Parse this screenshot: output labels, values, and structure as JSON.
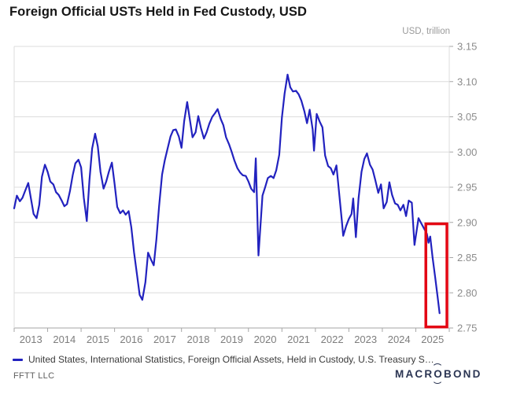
{
  "header": {
    "title": "Foreign Official USTs Held in Fed Custody, USD",
    "unit_label": "USD, trillion"
  },
  "legend": {
    "marker": "line-dash",
    "label": "United States, International Statistics, Foreign Official Assets, Held in Custody, U.S. Treasury S…"
  },
  "footer": {
    "source": "FFTT LLC",
    "logo_pre": "MACR",
    "logo_o": "O",
    "logo_post": "BOND"
  },
  "colors": {
    "line": "#2222bf",
    "grid": "#dcdcdc",
    "axis": "#a6a6a6",
    "tick_label": "#8c8c8c",
    "x_label": "#7d7d7d",
    "highlight": "#e30613",
    "title": "#161616"
  },
  "chart_data": {
    "type": "line",
    "title": "Foreign Official USTs Held in Fed Custody, USD",
    "ylabel": "USD, trillion",
    "xlabel": "",
    "ylim": [
      2.75,
      3.15
    ],
    "xlim": [
      2013.0,
      2026.0
    ],
    "grid": "horizontal",
    "legend_position": "bottom-left",
    "y_ticks": [
      2.75,
      2.8,
      2.85,
      2.9,
      2.95,
      3.0,
      3.05,
      3.1,
      3.15
    ],
    "y_tick_labels": [
      "2.75",
      "2.80",
      "2.85",
      "2.90",
      "2.95",
      "3.00",
      "3.05",
      "3.10",
      "3.15"
    ],
    "x_tick_boundaries": [
      2013,
      2014,
      2015,
      2016,
      2017,
      2018,
      2019,
      2020,
      2021,
      2022,
      2023,
      2024,
      2025,
      2026
    ],
    "x_labels": [
      "2013",
      "2014",
      "2015",
      "2016",
      "2017",
      "2018",
      "2019",
      "2020",
      "2021",
      "2022",
      "2023",
      "2024",
      "2025"
    ],
    "highlight_box": {
      "x1": 2025.3,
      "x2": 2025.93,
      "y_top": 2.898,
      "y_bottom": 2.7515
    },
    "series": [
      {
        "name": "United States, International Statistics, Foreign Official Assets, Held in Custody, U.S. Treasury S…",
        "points": [
          [
            2013.0,
            2.92
          ],
          [
            2013.08,
            2.938
          ],
          [
            2013.17,
            2.93
          ],
          [
            2013.25,
            2.935
          ],
          [
            2013.33,
            2.945
          ],
          [
            2013.42,
            2.956
          ],
          [
            2013.5,
            2.934
          ],
          [
            2013.58,
            2.912
          ],
          [
            2013.67,
            2.906
          ],
          [
            2013.75,
            2.925
          ],
          [
            2013.83,
            2.965
          ],
          [
            2013.92,
            2.982
          ],
          [
            2014.0,
            2.972
          ],
          [
            2014.08,
            2.958
          ],
          [
            2014.17,
            2.954
          ],
          [
            2014.25,
            2.943
          ],
          [
            2014.33,
            2.939
          ],
          [
            2014.42,
            2.931
          ],
          [
            2014.5,
            2.923
          ],
          [
            2014.58,
            2.926
          ],
          [
            2014.67,
            2.945
          ],
          [
            2014.75,
            2.967
          ],
          [
            2014.83,
            2.984
          ],
          [
            2014.92,
            2.989
          ],
          [
            2015.0,
            2.978
          ],
          [
            2015.08,
            2.935
          ],
          [
            2015.17,
            2.902
          ],
          [
            2015.25,
            2.96
          ],
          [
            2015.33,
            3.005
          ],
          [
            2015.42,
            3.026
          ],
          [
            2015.5,
            3.008
          ],
          [
            2015.58,
            2.972
          ],
          [
            2015.67,
            2.948
          ],
          [
            2015.75,
            2.958
          ],
          [
            2015.83,
            2.972
          ],
          [
            2015.92,
            2.985
          ],
          [
            2016.0,
            2.955
          ],
          [
            2016.08,
            2.922
          ],
          [
            2016.17,
            2.913
          ],
          [
            2016.25,
            2.917
          ],
          [
            2016.33,
            2.911
          ],
          [
            2016.42,
            2.916
          ],
          [
            2016.5,
            2.893
          ],
          [
            2016.58,
            2.858
          ],
          [
            2016.67,
            2.826
          ],
          [
            2016.75,
            2.797
          ],
          [
            2016.83,
            2.79
          ],
          [
            2016.92,
            2.815
          ],
          [
            2017.0,
            2.857
          ],
          [
            2017.08,
            2.848
          ],
          [
            2017.17,
            2.839
          ],
          [
            2017.25,
            2.876
          ],
          [
            2017.33,
            2.923
          ],
          [
            2017.42,
            2.968
          ],
          [
            2017.5,
            2.988
          ],
          [
            2017.58,
            3.004
          ],
          [
            2017.67,
            3.022
          ],
          [
            2017.75,
            3.031
          ],
          [
            2017.83,
            3.032
          ],
          [
            2017.92,
            3.022
          ],
          [
            2018.0,
            3.006
          ],
          [
            2018.08,
            3.044
          ],
          [
            2018.17,
            3.071
          ],
          [
            2018.25,
            3.046
          ],
          [
            2018.33,
            3.021
          ],
          [
            2018.42,
            3.028
          ],
          [
            2018.5,
            3.051
          ],
          [
            2018.58,
            3.034
          ],
          [
            2018.67,
            3.019
          ],
          [
            2018.75,
            3.028
          ],
          [
            2018.83,
            3.04
          ],
          [
            2018.92,
            3.05
          ],
          [
            2019.0,
            3.055
          ],
          [
            2019.08,
            3.061
          ],
          [
            2019.17,
            3.047
          ],
          [
            2019.25,
            3.038
          ],
          [
            2019.33,
            3.021
          ],
          [
            2019.42,
            3.011
          ],
          [
            2019.5,
            3.0
          ],
          [
            2019.58,
            2.988
          ],
          [
            2019.67,
            2.977
          ],
          [
            2019.75,
            2.971
          ],
          [
            2019.83,
            2.967
          ],
          [
            2019.92,
            2.966
          ],
          [
            2020.0,
            2.958
          ],
          [
            2020.08,
            2.948
          ],
          [
            2020.17,
            2.943
          ],
          [
            2020.22,
            2.991
          ],
          [
            2020.3,
            2.853
          ],
          [
            2020.42,
            2.938
          ],
          [
            2020.5,
            2.95
          ],
          [
            2020.58,
            2.963
          ],
          [
            2020.67,
            2.966
          ],
          [
            2020.75,
            2.963
          ],
          [
            2020.83,
            2.974
          ],
          [
            2020.92,
            2.996
          ],
          [
            2021.0,
            3.049
          ],
          [
            2021.08,
            3.083
          ],
          [
            2021.17,
            3.11
          ],
          [
            2021.25,
            3.092
          ],
          [
            2021.33,
            3.086
          ],
          [
            2021.42,
            3.087
          ],
          [
            2021.5,
            3.082
          ],
          [
            2021.58,
            3.073
          ],
          [
            2021.67,
            3.058
          ],
          [
            2021.75,
            3.041
          ],
          [
            2021.83,
            3.06
          ],
          [
            2021.92,
            3.032
          ],
          [
            2021.96,
            3.002
          ],
          [
            2022.04,
            3.054
          ],
          [
            2022.13,
            3.043
          ],
          [
            2022.21,
            3.035
          ],
          [
            2022.29,
            2.995
          ],
          [
            2022.38,
            2.98
          ],
          [
            2022.46,
            2.977
          ],
          [
            2022.54,
            2.968
          ],
          [
            2022.63,
            2.981
          ],
          [
            2022.71,
            2.942
          ],
          [
            2022.79,
            2.902
          ],
          [
            2022.83,
            2.881
          ],
          [
            2022.92,
            2.895
          ],
          [
            2023.0,
            2.905
          ],
          [
            2023.08,
            2.912
          ],
          [
            2023.13,
            2.934
          ],
          [
            2023.21,
            2.879
          ],
          [
            2023.29,
            2.934
          ],
          [
            2023.38,
            2.972
          ],
          [
            2023.46,
            2.99
          ],
          [
            2023.54,
            2.998
          ],
          [
            2023.63,
            2.982
          ],
          [
            2023.71,
            2.975
          ],
          [
            2023.79,
            2.96
          ],
          [
            2023.88,
            2.942
          ],
          [
            2023.96,
            2.954
          ],
          [
            2024.04,
            2.92
          ],
          [
            2024.13,
            2.929
          ],
          [
            2024.21,
            2.957
          ],
          [
            2024.29,
            2.939
          ],
          [
            2024.38,
            2.927
          ],
          [
            2024.46,
            2.925
          ],
          [
            2024.54,
            2.917
          ],
          [
            2024.63,
            2.925
          ],
          [
            2024.71,
            2.909
          ],
          [
            2024.79,
            2.931
          ],
          [
            2024.88,
            2.928
          ],
          [
            2024.96,
            2.868
          ],
          [
            2025.08,
            2.906
          ],
          [
            2025.17,
            2.898
          ],
          [
            2025.25,
            2.891
          ],
          [
            2025.33,
            2.884
          ],
          [
            2025.38,
            2.871
          ],
          [
            2025.43,
            2.88
          ],
          [
            2025.5,
            2.851
          ],
          [
            2025.58,
            2.822
          ],
          [
            2025.65,
            2.795
          ],
          [
            2025.71,
            2.771
          ]
        ]
      }
    ]
  }
}
